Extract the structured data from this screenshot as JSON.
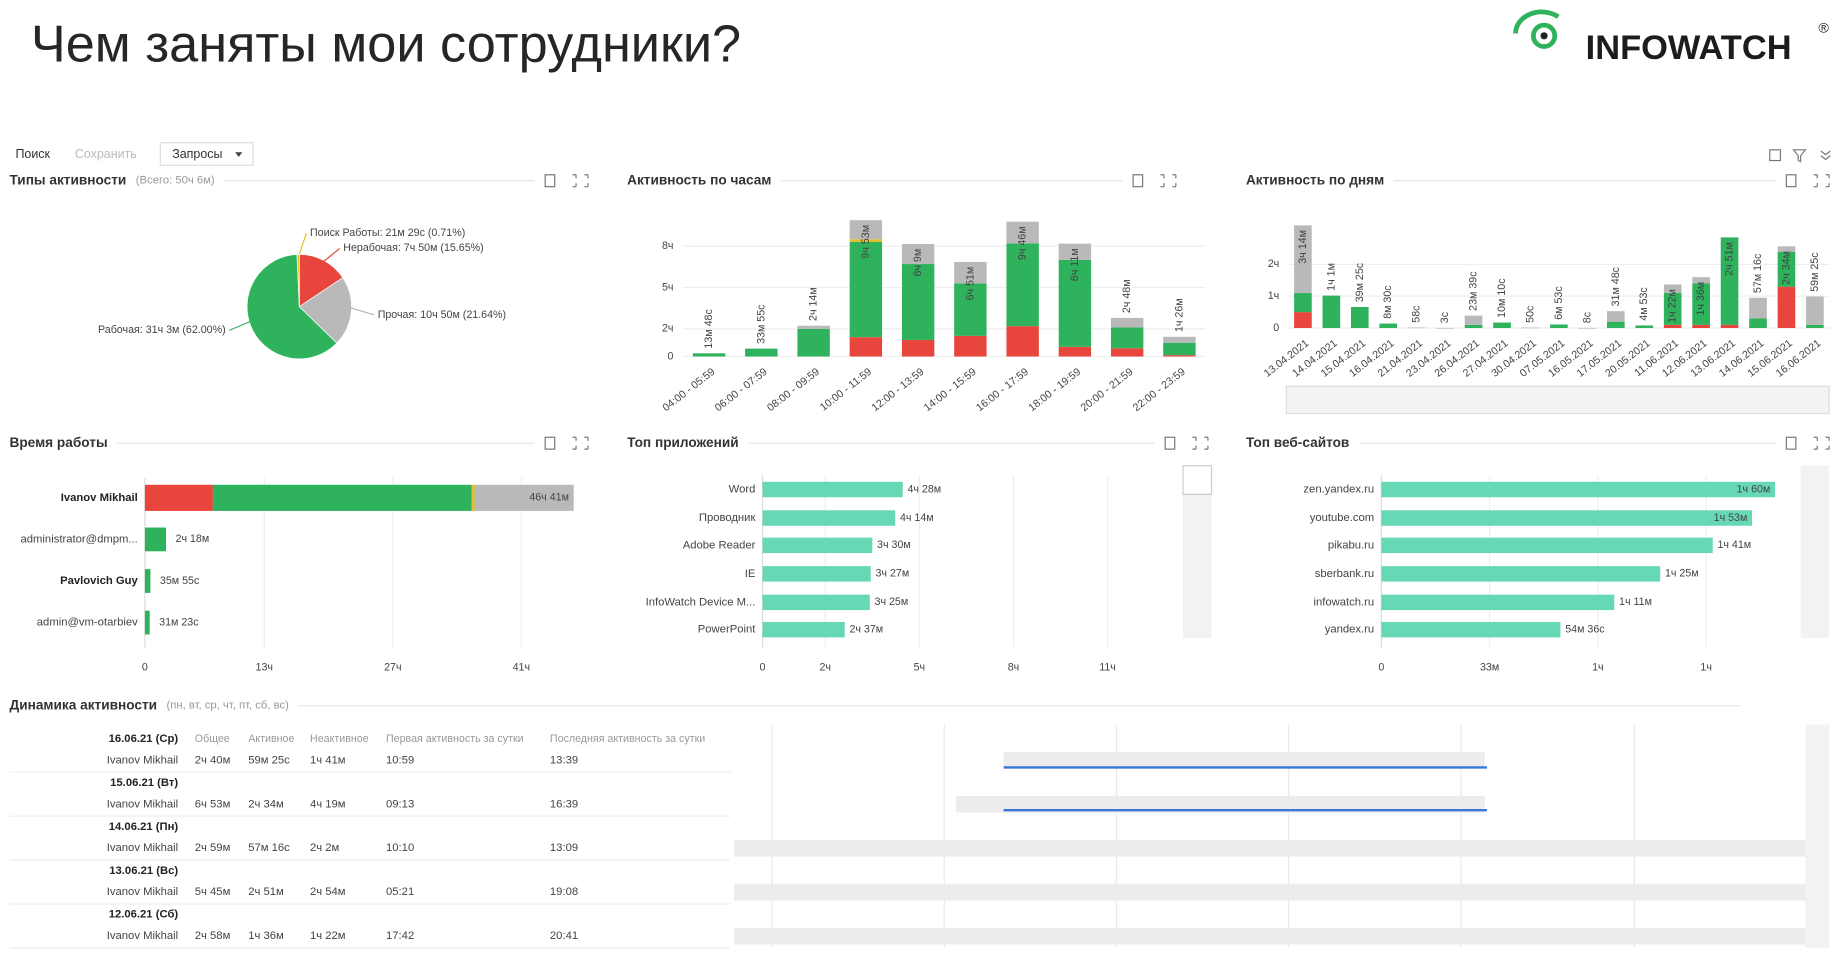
{
  "header": {
    "title": "Чем заняты мои сотрудники?",
    "logo": "INFOWATCH",
    "logo_mark": "®"
  },
  "toolbar": {
    "search": "Поиск",
    "save": "Сохранить",
    "queries": "Запросы"
  },
  "chart_data": [
    {
      "type": "pie",
      "title": "Типы активности",
      "subtitle": "(Всего: 50ч 6м)",
      "values": [
        15.65,
        21.64,
        62.0,
        0.71
      ],
      "value_labels": [
        "Нерабочая: 7ч 50м (15.65%)",
        "Прочая: 10ч 50м (21.64%)",
        "Рабочая: 31ч 3м (62.00%)",
        "Поиск Работы: 21м 29с (0.71%)"
      ],
      "colors": [
        "#e8453c",
        "#b9b9b9",
        "#2eb25c",
        "#e2c12b"
      ]
    },
    {
      "type": "bar",
      "orientation": "vertical",
      "stacked": true,
      "title": "Активность по часам",
      "categories": [
        "04:00 - 05:59",
        "06:00 - 07:59",
        "08:00 - 09:59",
        "10:00 - 11:59",
        "12:00 - 13:59",
        "14:00 - 15:59",
        "16:00 - 17:59",
        "18:00 - 19:59",
        "20:00 - 21:59",
        "22:00 - 23:59"
      ],
      "series": [
        {
          "color": "#e8453c",
          "values": [
            null,
            null,
            null,
            1.4,
            1.2,
            1.5,
            2.2,
            0.7,
            0.6,
            0.1
          ]
        },
        {
          "color": "#2eb25c",
          "values": [
            0.23,
            0.57,
            2.0,
            6.9,
            5.5,
            3.8,
            6.0,
            6.3,
            1.5,
            0.9
          ]
        },
        {
          "color": "#e2c12b",
          "values": [
            null,
            null,
            null,
            0.2,
            null,
            null,
            null,
            null,
            null,
            null
          ]
        },
        {
          "color": "#b9b9b9",
          "values": [
            null,
            null,
            0.23,
            1.38,
            1.45,
            1.55,
            1.57,
            1.18,
            0.7,
            0.43
          ]
        }
      ],
      "value_labels": [
        "13м 48с",
        "33м 55с",
        "2ч 14м",
        "9ч 53м",
        "8ч 9м",
        "6ч 51м",
        "9ч 46м",
        "8ч 11м",
        "2ч 48м",
        "1ч 26м"
      ],
      "ylim": [
        0,
        10.5
      ],
      "yticks": [
        0,
        {
          "value": 2,
          "label": "2ч"
        },
        {
          "value": 5,
          "label": "5ч"
        },
        {
          "value": 8,
          "label": "8ч"
        }
      ],
      "grid": true
    },
    {
      "type": "bar",
      "orientation": "vertical",
      "stacked": true,
      "title": "Активность по дням",
      "categories": [
        "13.04.2021",
        "14.04.2021",
        "15.04.2021",
        "16.04.2021",
        "21.04.2021",
        "23.04.2021",
        "26.04.2021",
        "27.04.2021",
        "30.04.2021",
        "07.05.2021",
        "16.05.2021",
        "17.05.2021",
        "20.05.2021",
        "11.06.2021",
        "12.06.2021",
        "13.06.2021",
        "14.06.2021",
        "15.06.2021",
        "16.06.2021"
      ],
      "series": [
        {
          "color": "#e8453c",
          "values": [
            0.5,
            null,
            null,
            null,
            null,
            null,
            null,
            null,
            null,
            null,
            null,
            null,
            null,
            0.1,
            0.1,
            0.1,
            null,
            1.3,
            null
          ]
        },
        {
          "color": "#2eb25c",
          "values": [
            0.6,
            1.02,
            0.66,
            0.14,
            null,
            null,
            0.1,
            0.17,
            null,
            0.11,
            null,
            0.2,
            0.08,
            1.0,
            1.3,
            2.75,
            0.3,
            1.1,
            0.1
          ]
        },
        {
          "color": "#b9b9b9",
          "values": [
            2.13,
            null,
            null,
            null,
            0.016,
            0.001,
            0.29,
            null,
            0.014,
            null,
            0.002,
            0.33,
            null,
            0.27,
            0.2,
            null,
            0.65,
            0.17,
            0.89
          ]
        }
      ],
      "value_labels": [
        "3ч 14м",
        "1ч 1м",
        "39м 25с",
        "8м 30с",
        "58с",
        "3с",
        "23м 39с",
        "10м 10с",
        "50с",
        "6м 53с",
        "8с",
        "31м 48с",
        "4м 53с",
        "1ч 22м",
        "1ч 36м",
        "2ч 51м",
        "57м 16с",
        "2ч 34м",
        "59м 25с"
      ],
      "ylim": [
        0,
        3.4
      ],
      "yticks": [
        0,
        {
          "value": 1,
          "label": "1ч"
        },
        {
          "value": 2,
          "label": "2ч"
        }
      ],
      "grid": true
    },
    {
      "type": "bar",
      "orientation": "horizontal",
      "stacked": true,
      "title": "Время работы",
      "categories": [
        "Ivanov Mikhail",
        "administrator@dmpm...",
        "Pavlovich Guy",
        "admin@vm-otarbiev"
      ],
      "series": [
        {
          "color": "#e8453c",
          "values": [
            7.4,
            null,
            null,
            null
          ]
        },
        {
          "color": "#2eb25c",
          "values": [
            28.2,
            2.3,
            0.6,
            0.52
          ]
        },
        {
          "color": "#e2c12b",
          "values": [
            0.3,
            null,
            null,
            null
          ]
        },
        {
          "color": "#b9b9b9",
          "values": [
            10.8,
            null,
            null,
            null
          ]
        }
      ],
      "value_labels": [
        "46ч 41м",
        "2ч 18м",
        "35м 55с",
        "31м 23с"
      ],
      "xlim": [
        0,
        46.7
      ],
      "xticks": [
        0,
        {
          "value": 13,
          "label": "13ч"
        },
        {
          "value": 27,
          "label": "27ч"
        },
        {
          "value": 41,
          "label": "41ч"
        }
      ],
      "grid": true
    },
    {
      "type": "bar",
      "orientation": "horizontal",
      "title": "Топ приложений",
      "color": "#66d8b6",
      "categories": [
        "Word",
        "Проводник",
        "Adobe Reader",
        "IE",
        "InfoWatch Device M...",
        "PowerPoint"
      ],
      "values": [
        4.47,
        4.23,
        3.5,
        3.45,
        3.42,
        2.62
      ],
      "value_labels": [
        "4ч 28м",
        "4ч 14м",
        "3ч 30м",
        "3ч 27м",
        "3ч 25м",
        "2ч 37м"
      ],
      "xlim": [
        0,
        12.8
      ],
      "xticks": [
        0,
        {
          "value": 2,
          "label": "2ч"
        },
        {
          "value": 5,
          "label": "5ч"
        },
        {
          "value": 8,
          "label": "8ч"
        },
        {
          "value": 11,
          "label": "11ч"
        }
      ],
      "grid": true
    },
    {
      "type": "bar",
      "orientation": "horizontal",
      "title": "Топ веб-сайтов",
      "color": "#66d8b6",
      "categories": [
        "zen.yandex.ru",
        "youtube.com",
        "pikabu.ru",
        "sberbank.ru",
        "infowatch.ru",
        "yandex.ru"
      ],
      "values": [
        120,
        113,
        101,
        85,
        71,
        54.6
      ],
      "value_labels": [
        "1ч 60м",
        "1ч 53м",
        "1ч 41м",
        "1ч 25м",
        "1ч 11м",
        "54м 36с"
      ],
      "xlim": [
        0,
        122
      ],
      "xticks": [
        0,
        {
          "value": 33,
          "label": "33м"
        },
        {
          "value": 66,
          "label": "1ч"
        },
        {
          "value": 99,
          "label": "1ч"
        }
      ],
      "grid": true
    }
  ],
  "table": {
    "title": "Динамика активности",
    "subtitle": "(пн, вт, ср, чт, пт, сб, вс)",
    "columns": [
      "Общее",
      "Активное",
      "Неактивное",
      "Первая активность за сутки",
      "Последняя активность за сутки"
    ],
    "rows": [
      {
        "date": "16.06.21 (Ср)",
        "name": "Ivanov Mikhail",
        "cells": [
          "2ч 40м",
          "59м 25с",
          "1ч 41м",
          "10:59",
          "13:39"
        ]
      },
      {
        "date": "15.06.21 (Вт)",
        "name": "Ivanov Mikhail",
        "cells": [
          "6ч 53м",
          "2ч 34м",
          "4ч 19м",
          "09:13",
          "16:39"
        ]
      },
      {
        "date": "14.06.21 (Пн)",
        "name": "Ivanov Mikhail",
        "cells": [
          "2ч 59м",
          "57м 16с",
          "2ч 2м",
          "10:10",
          "13:09"
        ]
      },
      {
        "date": "13.06.21 (Вс)",
        "name": "Ivanov Mikhail",
        "cells": [
          "5ч 45м",
          "2ч 51м",
          "2ч 54м",
          "05:21",
          "19:08"
        ]
      },
      {
        "date": "12.06.21 (Сб)",
        "name": "Ivanov Mikhail",
        "cells": [
          "2ч 58м",
          "1ч 36м",
          "1ч 22м",
          "17:42",
          "20:41"
        ]
      }
    ]
  }
}
